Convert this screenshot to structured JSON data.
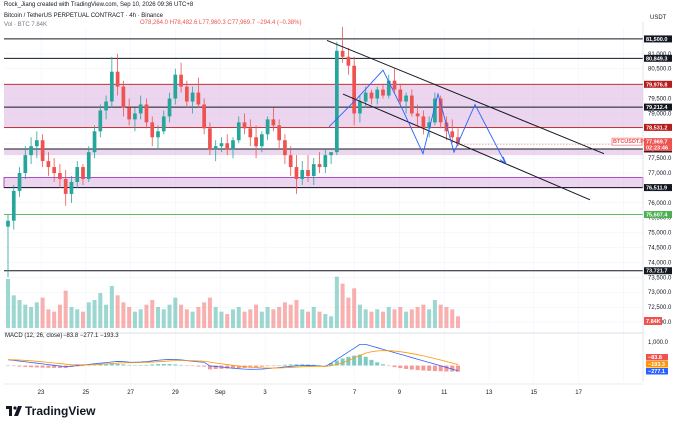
{
  "header": {
    "author_line": "Rock_Jiang created with TradingView.com, Sep 10, 2026 09:36 UTC+8",
    "symbol_line": "Bitcoin / TetherUS PERPETUAL CONTRACT · 4h · Binance",
    "ohlc_line": "O78,264.0 H78,482.6 L77,960.3 C77,969.7 −294.4 (−0.38%)",
    "volume_line": "Vol · BTC  7.84K",
    "currency": "USDT"
  },
  "brand": {
    "name": "TradingView"
  },
  "colors": {
    "up": "#26a69a",
    "down": "#ef5350",
    "zone_fill": "#e1bee7",
    "zone_border": "#9c27b0",
    "red_line": "#b71c1c",
    "green_line": "#4caf50",
    "black_line": "#131722",
    "projection": "#2962ff",
    "macd_line": "#2962ff",
    "signal_line": "#ff9800"
  },
  "chart_data": [
    {
      "type": "candlestick",
      "title": "Bitcoin / TetherUS PERPETUAL CONTRACT · 4h · Binance",
      "ylim": [
        71800,
        81900
      ],
      "x_ticks": [
        "23",
        "25",
        "27",
        "29",
        "Sep",
        "3",
        "5",
        "7",
        "9",
        "11",
        "13",
        "15",
        "17"
      ],
      "y_ticks": [
        72000,
        72500,
        73000,
        73500,
        74000,
        74500,
        75000,
        75500,
        76000,
        76500,
        77000,
        77500,
        78000,
        78500,
        79000,
        79500,
        80000,
        80500,
        81000,
        81500
      ],
      "price_levels": [
        {
          "label": "81,500.0",
          "value": 81500,
          "color": "#131722"
        },
        {
          "label": "80,849.3",
          "value": 80849.3,
          "color": "#131722"
        },
        {
          "label": "79,976.8",
          "value": 79976.8,
          "color": "#b71c1c"
        },
        {
          "label": "79,212.4",
          "value": 79212.4,
          "color": "#131722"
        },
        {
          "label": "78,531.2",
          "value": 78531.2,
          "color": "#b71c1c"
        },
        {
          "label": "77,808.4",
          "value": 77808.4,
          "color": "#131722"
        },
        {
          "label": "76,511.9",
          "value": 76511.9,
          "color": "#131722"
        },
        {
          "label": "75,607.4",
          "value": 75607.4,
          "color": "#4caf50"
        },
        {
          "label": "73,721.7",
          "value": 73721.7,
          "color": "#131722"
        }
      ],
      "current_price": {
        "symbol": "BTCUSDT.P",
        "price": "77,969.7",
        "countdown": "02:23:46",
        "value": 77969.7
      },
      "zones": [
        {
          "from": 78531.2,
          "to": 79976.8
        },
        {
          "from": 77600,
          "to": 77808.4
        },
        {
          "from": 76511.9,
          "to": 76850
        }
      ],
      "ohlc": [
        [
          75200,
          75600,
          73500,
          75400
        ],
        [
          75400,
          76600,
          75100,
          76400
        ],
        [
          76400,
          77200,
          76200,
          77000
        ],
        [
          77000,
          77900,
          76800,
          77600
        ],
        [
          77600,
          78200,
          77300,
          77900
        ],
        [
          77900,
          78400,
          77500,
          78100
        ],
        [
          78100,
          78300,
          77200,
          77400
        ],
        [
          77400,
          77700,
          76900,
          77200
        ],
        [
          77200,
          77500,
          76700,
          77000
        ],
        [
          77000,
          77300,
          76500,
          76800
        ],
        [
          76800,
          77100,
          75900,
          76300
        ],
        [
          76300,
          76900,
          76000,
          76700
        ],
        [
          76700,
          77400,
          76500,
          77200
        ],
        [
          77200,
          77300,
          76600,
          76800
        ],
        [
          76800,
          77900,
          76700,
          77700
        ],
        [
          77700,
          78600,
          77500,
          78400
        ],
        [
          78400,
          79300,
          78200,
          79100
        ],
        [
          79100,
          79600,
          78800,
          79400
        ],
        [
          79400,
          80900,
          79200,
          80400
        ],
        [
          80400,
          81000,
          79600,
          79900
        ],
        [
          79900,
          80100,
          78900,
          79200
        ],
        [
          79200,
          79500,
          78600,
          78800
        ],
        [
          78800,
          79200,
          78400,
          79000
        ],
        [
          79000,
          79600,
          78800,
          79300
        ],
        [
          79300,
          79500,
          78500,
          78700
        ],
        [
          78700,
          78900,
          77900,
          78200
        ],
        [
          78200,
          78600,
          77800,
          78400
        ],
        [
          78400,
          79100,
          78300,
          78900
        ],
        [
          78900,
          79700,
          78700,
          79500
        ],
        [
          79500,
          80500,
          79300,
          80300
        ],
        [
          80300,
          80700,
          79700,
          79900
        ],
        [
          79900,
          80100,
          79200,
          79400
        ],
        [
          79400,
          79900,
          79000,
          79700
        ],
        [
          79700,
          80200,
          79200,
          79300
        ],
        [
          79300,
          79500,
          78300,
          78500
        ],
        [
          78500,
          78700,
          77600,
          77800
        ],
        [
          77800,
          78100,
          77400,
          77900
        ],
        [
          77900,
          78200,
          77700,
          78000
        ],
        [
          78000,
          78300,
          77600,
          77800
        ],
        [
          77800,
          78200,
          77500,
          78100
        ],
        [
          78100,
          78900,
          78000,
          78700
        ],
        [
          78700,
          79000,
          78300,
          78500
        ],
        [
          78500,
          78800,
          77900,
          78200
        ],
        [
          78200,
          78600,
          77500,
          77900
        ],
        [
          77900,
          78400,
          77700,
          78300
        ],
        [
          78300,
          78900,
          78100,
          78800
        ],
        [
          78800,
          79200,
          78400,
          78600
        ],
        [
          78600,
          78800,
          77800,
          78100
        ],
        [
          78100,
          78300,
          77300,
          77600
        ],
        [
          77600,
          77900,
          76900,
          77200
        ],
        [
          77200,
          77600,
          76300,
          76800
        ],
        [
          76800,
          77400,
          76600,
          77100
        ],
        [
          77100,
          77600,
          76700,
          76900
        ],
        [
          76900,
          77500,
          76600,
          77300
        ],
        [
          77300,
          77700,
          77000,
          77200
        ],
        [
          77200,
          77800,
          77000,
          77600
        ],
        [
          77600,
          77700,
          77300,
          77700
        ],
        [
          77700,
          81400,
          77600,
          81100
        ],
        [
          81100,
          81900,
          80700,
          80900
        ],
        [
          80900,
          81200,
          80300,
          80600
        ],
        [
          80600,
          80900,
          78600,
          79000
        ],
        [
          79000,
          79600,
          78700,
          79400
        ],
        [
          79400,
          79900,
          79200,
          79700
        ],
        [
          79700,
          79800,
          79300,
          79500
        ],
        [
          79500,
          79900,
          79300,
          79800
        ],
        [
          79800,
          80000,
          79500,
          79600
        ],
        [
          79600,
          80300,
          79500,
          80100
        ],
        [
          80100,
          80500,
          79700,
          79800
        ],
        [
          79800,
          80000,
          79300,
          79400
        ],
        [
          79400,
          79700,
          79000,
          79600
        ],
        [
          79600,
          79800,
          78900,
          79000
        ],
        [
          79000,
          79300,
          78600,
          78900
        ],
        [
          78900,
          79100,
          78300,
          78500
        ],
        [
          78500,
          78900,
          78200,
          78700
        ],
        [
          78700,
          79700,
          78600,
          79500
        ],
        [
          79500,
          79600,
          78500,
          78700
        ],
        [
          78700,
          78900,
          78100,
          78400
        ],
        [
          78400,
          78800,
          78000,
          78200
        ],
        [
          78200,
          78500,
          77900,
          77970
        ]
      ],
      "volume": [
        2.1,
        1.4,
        1.2,
        1.0,
        0.9,
        1.1,
        1.3,
        0.8,
        0.7,
        1.0,
        1.6,
        0.9,
        0.8,
        0.7,
        1.1,
        1.2,
        1.5,
        1.0,
        1.8,
        1.4,
        1.1,
        0.9,
        0.7,
        0.8,
        1.0,
        1.2,
        0.9,
        0.8,
        1.0,
        1.3,
        1.0,
        0.8,
        0.7,
        0.9,
        1.1,
        1.3,
        0.9,
        0.7,
        0.6,
        0.8,
        0.9,
        0.7,
        0.8,
        1.0,
        0.7,
        0.9,
        0.8,
        0.9,
        1.1,
        1.0,
        1.2,
        0.8,
        0.7,
        0.9,
        0.7,
        0.6,
        0.5,
        2.2,
        1.9,
        1.3,
        1.7,
        1.0,
        0.8,
        0.7,
        0.8,
        0.7,
        0.9,
        0.8,
        0.9,
        0.7,
        0.8,
        0.9,
        1.0,
        0.8,
        1.2,
        1.0,
        0.9,
        0.8,
        0.5
      ],
      "volume_label": "7.84K"
    },
    {
      "type": "line",
      "title": "MACD (12, 26, close)",
      "values_line": "−83.8  −277.1  −193.3",
      "ylim": [
        -700,
        1300
      ],
      "y_ticks": [
        "1,000.0"
      ],
      "series": [
        {
          "name": "MACD",
          "color": "#2962ff"
        },
        {
          "name": "Signal",
          "color": "#ff9800"
        }
      ],
      "badges": [
        {
          "label": "−83.8",
          "value": -83.8,
          "color": "#ef5350"
        },
        {
          "label": "−193.3",
          "value": -193.3,
          "color": "#ff9800"
        },
        {
          "label": "−277.1",
          "value": -277.1,
          "color": "#2962ff"
        }
      ]
    }
  ]
}
